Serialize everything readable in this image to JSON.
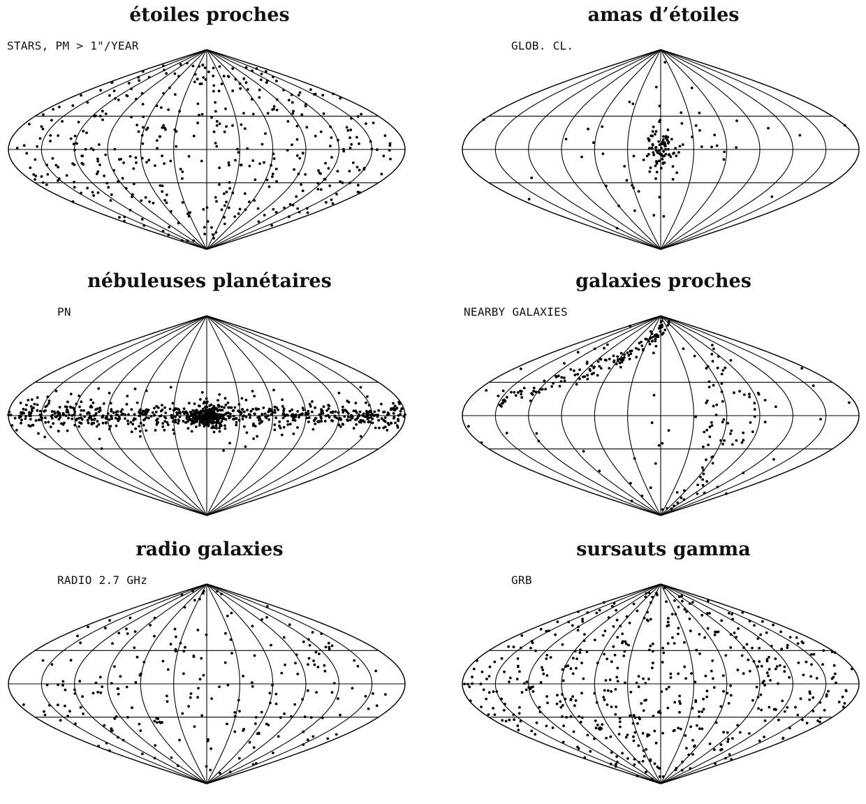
{
  "panels": [
    {
      "id": "stars",
      "title": "étoiles proches",
      "label": "STARS, PM > 1\"/YEAR",
      "distribution": "isotropic",
      "count": 420
    },
    {
      "id": "globular",
      "title": "amas d’étoiles",
      "label": "GLOB. CL.",
      "distribution": "galactic-center-cluster",
      "count": 130
    },
    {
      "id": "pn",
      "title": "nébuleuses planétaires",
      "label": "PN",
      "distribution": "galactic-plane",
      "count": 950
    },
    {
      "id": "nearby",
      "title": "galaxies proches",
      "label": "NEARBY GALAXIES",
      "distribution": "supergalactic-arc",
      "count": 260
    },
    {
      "id": "radio",
      "title": "radio galaxies",
      "label": "RADIO 2.7 GHz",
      "distribution": "isotropic",
      "count": 230
    },
    {
      "id": "grb",
      "title": "sursauts gamma",
      "label": "GRB",
      "distribution": "isotropic",
      "count": 520
    }
  ],
  "projection": "sinusoidal",
  "grid": {
    "meridians_deg": 30,
    "parallels_deg": 30
  }
}
